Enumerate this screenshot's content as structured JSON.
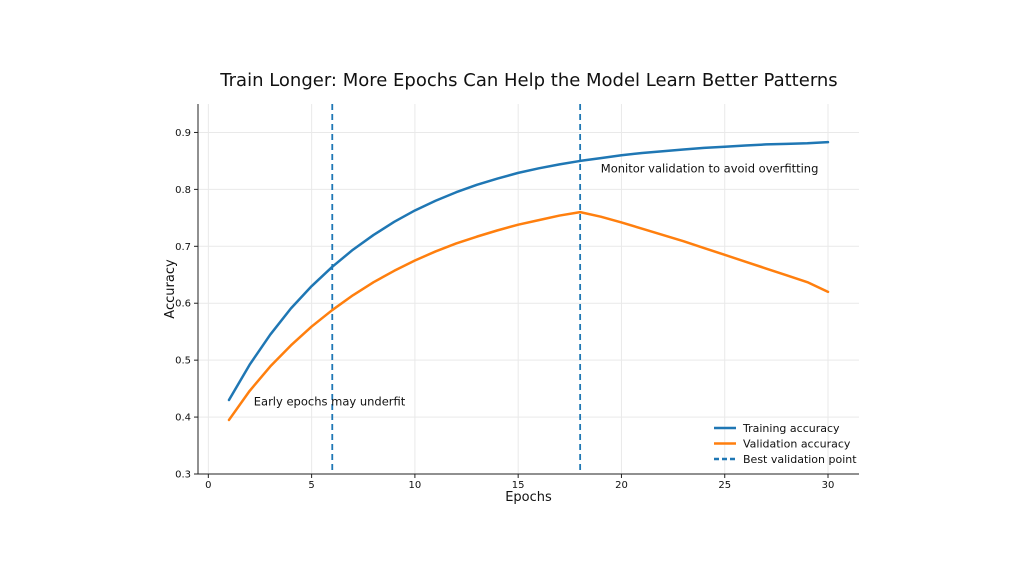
{
  "chart_data": {
    "type": "line",
    "title": "Train Longer: More Epochs Can Help the Model Learn Better Patterns",
    "xlabel": "Epochs",
    "ylabel": "Accuracy",
    "xlim": [
      -0.5,
      31.5
    ],
    "ylim": [
      0.3,
      0.95
    ],
    "x_ticks": [
      0,
      5,
      10,
      15,
      20,
      25,
      30
    ],
    "y_ticks": [
      0.3,
      0.4,
      0.5,
      0.6,
      0.7,
      0.8,
      0.9
    ],
    "grid": true,
    "legend_position": "lower-right",
    "x": [
      1,
      2,
      3,
      4,
      5,
      6,
      7,
      8,
      9,
      10,
      11,
      12,
      13,
      14,
      15,
      16,
      17,
      18,
      19,
      20,
      21,
      22,
      23,
      24,
      25,
      26,
      27,
      28,
      29,
      30
    ],
    "series": [
      {
        "name": "Training accuracy",
        "color": "#1f77b4",
        "values": [
          0.43,
          0.492,
          0.545,
          0.591,
          0.63,
          0.664,
          0.694,
          0.72,
          0.743,
          0.763,
          0.78,
          0.795,
          0.808,
          0.819,
          0.829,
          0.837,
          0.844,
          0.85,
          0.855,
          0.86,
          0.864,
          0.867,
          0.87,
          0.873,
          0.875,
          0.877,
          0.879,
          0.88,
          0.881,
          0.883
        ]
      },
      {
        "name": "Validation accuracy",
        "color": "#ff7f0e",
        "values": [
          0.395,
          0.446,
          0.489,
          0.526,
          0.559,
          0.588,
          0.614,
          0.637,
          0.657,
          0.675,
          0.691,
          0.705,
          0.717,
          0.728,
          0.738,
          0.746,
          0.754,
          0.76,
          0.752,
          0.742,
          0.731,
          0.72,
          0.709,
          0.697,
          0.685,
          0.673,
          0.661,
          0.649,
          0.637,
          0.62
        ]
      }
    ],
    "vertical_lines": [
      {
        "x": 6,
        "color": "#1f77b4",
        "style": "dashed"
      },
      {
        "x": 18,
        "color": "#1f77b4",
        "style": "dashed"
      }
    ],
    "legend_entries": [
      {
        "label": "Training accuracy",
        "color": "#1f77b4",
        "style": "solid"
      },
      {
        "label": "Validation accuracy",
        "color": "#ff7f0e",
        "style": "solid"
      },
      {
        "label": "Best validation point",
        "color": "#1f77b4",
        "style": "dashed"
      }
    ],
    "annotations": [
      {
        "text": "Early epochs may underfit",
        "x": 2.2,
        "y": 0.42
      },
      {
        "text": "Monitor validation to avoid overfitting",
        "x": 19,
        "y": 0.83
      }
    ]
  }
}
